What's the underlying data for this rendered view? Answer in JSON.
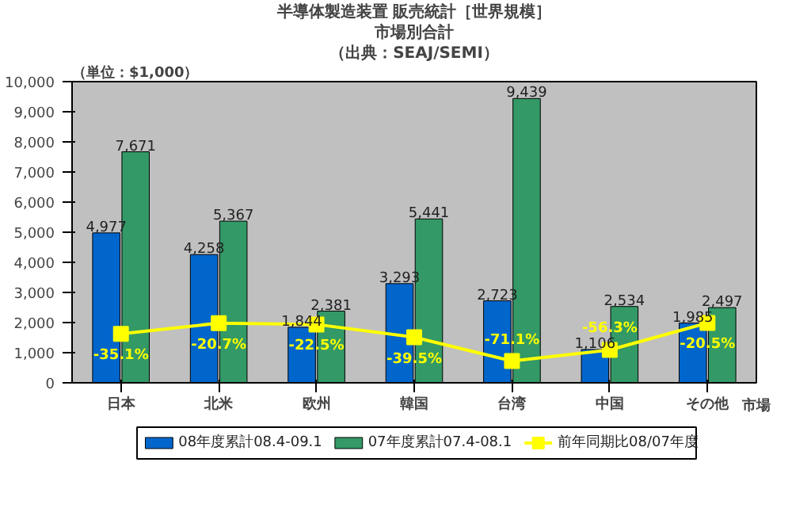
{
  "chart_data": {
    "type": "bar",
    "title": "半導体製造装置 販売統計［世界規模］",
    "subtitle": "市場別合計",
    "annotations": [
      "（出典：SEAJ/SEMI）"
    ],
    "ylabel": "（単位：$1,000）",
    "xlabel": "市場",
    "categories": [
      "日本",
      "北米",
      "欧州",
      "韓国",
      "台湾",
      "中国",
      "その他"
    ],
    "series": [
      {
        "name": "08年度累計08.4-09.1",
        "color": "#0066cc",
        "values": [
          4977,
          4258,
          1844,
          3293,
          2723,
          1106,
          1985
        ],
        "value_labels": [
          "4,977",
          "4,258",
          "1,844",
          "3,293",
          "2,723",
          "1,106",
          "1,985"
        ]
      },
      {
        "name": "07年度累計07.4-08.1",
        "color": "#339966",
        "values": [
          7671,
          5367,
          2381,
          5441,
          9439,
          2534,
          2497
        ],
        "value_labels": [
          "7,671",
          "5,367",
          "2,381",
          "5,441",
          "9,439",
          "2,534",
          "2,497"
        ]
      },
      {
        "name": "前年同期比08/07年度",
        "type": "line",
        "axis": "y2",
        "color": "#ffff00",
        "marker": "square",
        "values": [
          -35.1,
          -20.7,
          -22.5,
          -39.5,
          -71.1,
          -56.3,
          -20.5
        ],
        "value_labels": [
          "-35.1%",
          "-20.7%",
          "-22.5%",
          "-39.5%",
          "-71.1%",
          "-56.3%",
          "-20.5%"
        ]
      }
    ],
    "ylim": [
      0,
      10000
    ],
    "yticks": [
      {
        "value": 0,
        "label": "0"
      },
      {
        "value": 1000,
        "label": "1,000"
      },
      {
        "value": 2000,
        "label": "2,000"
      },
      {
        "value": 3000,
        "label": "3,000"
      },
      {
        "value": 4000,
        "label": "4,000"
      },
      {
        "value": 5000,
        "label": "5,000"
      },
      {
        "value": 6000,
        "label": "6,000"
      },
      {
        "value": 7000,
        "label": "7,000"
      },
      {
        "value": 8000,
        "label": "8,000"
      },
      {
        "value": 9000,
        "label": "9,000"
      },
      {
        "value": 10000,
        "label": "10,000"
      }
    ],
    "y2lim": [
      -100,
      300
    ],
    "legend": "bottom"
  }
}
